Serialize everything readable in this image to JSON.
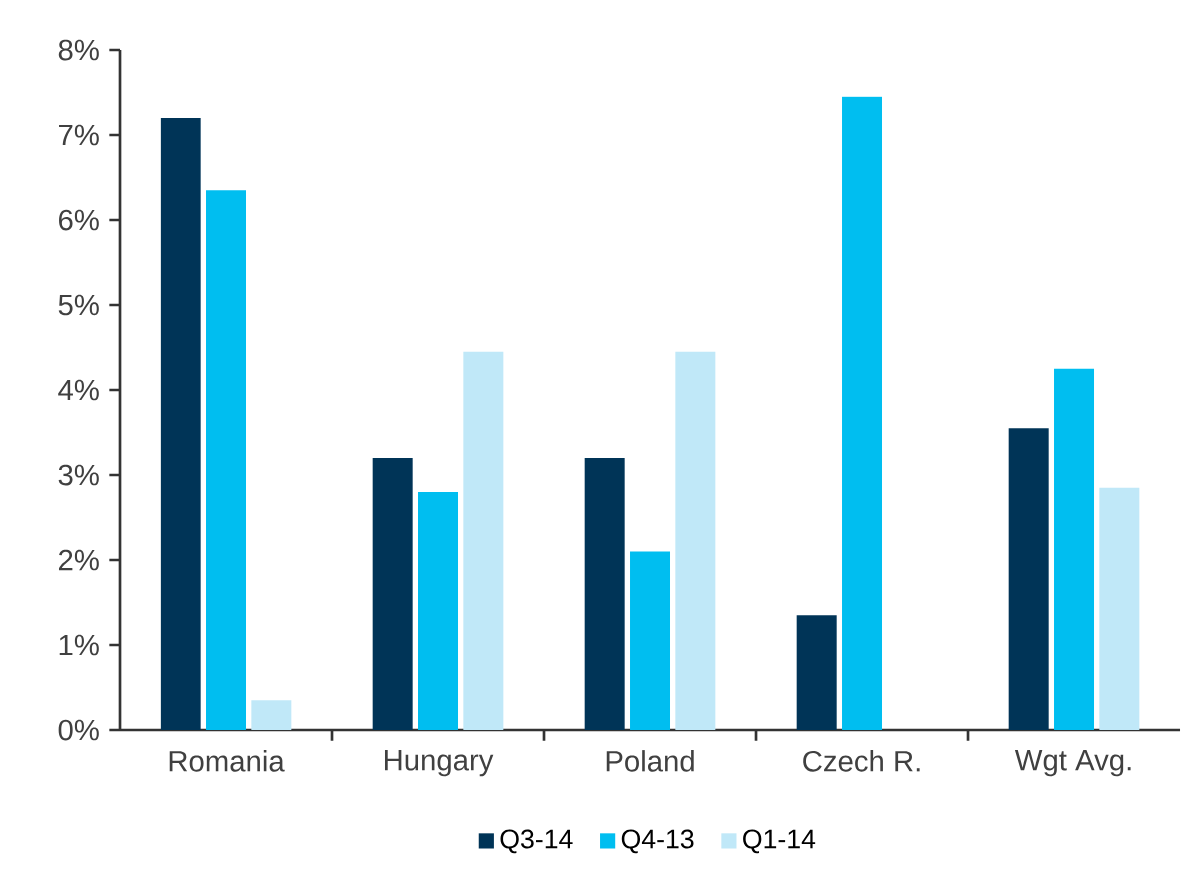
{
  "chart_data": {
    "type": "bar",
    "categories": [
      "Romania",
      "Hungary",
      "Poland",
      "Czech R.",
      "Wgt Avg."
    ],
    "series": [
      {
        "name": "Q3-14",
        "color": "#003457",
        "values": [
          7.2,
          3.2,
          3.2,
          1.35,
          3.55
        ]
      },
      {
        "name": "Q4-13",
        "color": "#00bef0",
        "values": [
          6.35,
          2.8,
          2.1,
          7.45,
          4.25
        ]
      },
      {
        "name": "Q1-14",
        "color": "#c0e8f8",
        "values": [
          0.35,
          4.45,
          4.45,
          null,
          2.85
        ]
      }
    ],
    "ylim": [
      0,
      8
    ],
    "yticks": [
      {
        "value": 0,
        "label": "0%"
      },
      {
        "value": 1,
        "label": "1%"
      },
      {
        "value": 2,
        "label": "2%"
      },
      {
        "value": 3,
        "label": "3%"
      },
      {
        "value": 4,
        "label": "4%"
      },
      {
        "value": 5,
        "label": "5%"
      },
      {
        "value": 6,
        "label": "6%"
      },
      {
        "value": 7,
        "label": "7%"
      },
      {
        "value": 8,
        "label": "8%"
      }
    ],
    "grid": false,
    "legend": "bottom"
  }
}
